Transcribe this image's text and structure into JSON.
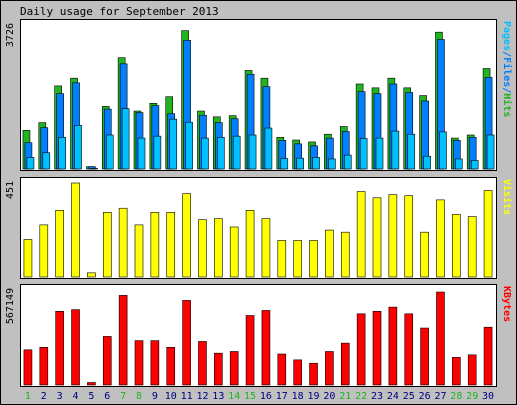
{
  "chart_data": {
    "type": "bar",
    "title": "Daily usage for September 2013",
    "colors": {
      "background": "#c0c0c0",
      "panel": "#ffffff",
      "hits": "#21b321",
      "files": "#0080ff",
      "pages": "#00c0ff",
      "visits": "#ffff00",
      "kbytes": "#ff0000",
      "weekend_label": "#21b321",
      "weekday_label": "#000080"
    },
    "categories": [
      "1",
      "2",
      "3",
      "4",
      "5",
      "6",
      "7",
      "8",
      "9",
      "10",
      "11",
      "12",
      "13",
      "14",
      "15",
      "16",
      "17",
      "18",
      "19",
      "20",
      "21",
      "22",
      "23",
      "24",
      "25",
      "26",
      "27",
      "28",
      "29",
      "30"
    ],
    "weekend_days": [
      "1",
      "7",
      "8",
      "14",
      "15",
      "21",
      "22",
      "28",
      "29"
    ],
    "panels": [
      {
        "id": "usage",
        "max_label": "3726",
        "ymax": 3726,
        "legend_parts": [
          {
            "text": "Pages",
            "color_key": "pages"
          },
          {
            "text": "/",
            "color_key": "files"
          },
          {
            "text": "Files",
            "color_key": "files"
          },
          {
            "text": "/",
            "color_key": "files"
          },
          {
            "text": "Hits",
            "color_key": "hits"
          }
        ],
        "series": [
          {
            "name": "Hits",
            "color_key": "hits",
            "values": [
              1000,
              1200,
              2150,
              2350,
              60,
              1620,
              2880,
              1500,
              1700,
              1870,
              3580,
              1500,
              1350,
              1380,
              2550,
              2350,
              820,
              750,
              700,
              900,
              1100,
              2200,
              2100,
              2350,
              2100,
              1900,
              3540,
              800,
              880,
              2600
            ]
          },
          {
            "name": "Files",
            "color_key": "files",
            "values": [
              680,
              1070,
              1950,
              2230,
              60,
              1550,
              2720,
              1460,
              1640,
              1430,
              3330,
              1390,
              1200,
              1300,
              2450,
              2130,
              740,
              650,
              600,
              800,
              970,
              2000,
              1950,
              2200,
              1980,
              1760,
              3350,
              740,
              820,
              2370
            ]
          },
          {
            "name": "Pages",
            "color_key": "pages",
            "values": [
              300,
              420,
              820,
              1130,
              20,
              880,
              1560,
              800,
              850,
              1290,
              1210,
              800,
              820,
              850,
              880,
              1060,
              270,
              280,
              300,
              260,
              360,
              790,
              800,
              980,
              900,
              330,
              960,
              260,
              220,
              880
            ]
          }
        ]
      },
      {
        "id": "visits",
        "max_label": "451",
        "ymax": 451,
        "legend_parts": [
          {
            "text": "Visits",
            "color_key": "visits"
          }
        ],
        "series": [
          {
            "name": "Visits",
            "color_key": "visits",
            "values": [
              180,
              250,
              320,
              451,
              20,
              310,
              330,
              250,
              310,
              310,
              400,
              275,
              280,
              240,
              320,
              280,
              175,
              175,
              175,
              225,
              215,
              410,
              380,
              395,
              390,
              215,
              370,
              300,
              290,
              415
            ]
          }
        ]
      },
      {
        "id": "kbytes",
        "max_label": "567149",
        "ymax": 567149,
        "legend_parts": [
          {
            "text": "KBytes",
            "color_key": "kbytes"
          }
        ],
        "series": [
          {
            "name": "KBytes",
            "color_key": "kbytes",
            "values": [
              210000,
              225000,
              440000,
              450000,
              15000,
              290000,
              535000,
              265000,
              265000,
              225000,
              505000,
              260000,
              190000,
              200000,
              415000,
              445000,
              185000,
              150000,
              130000,
              200000,
              250000,
              425000,
              440000,
              465000,
              425000,
              340000,
              555000,
              165000,
              180000,
              345000
            ]
          }
        ]
      }
    ]
  }
}
